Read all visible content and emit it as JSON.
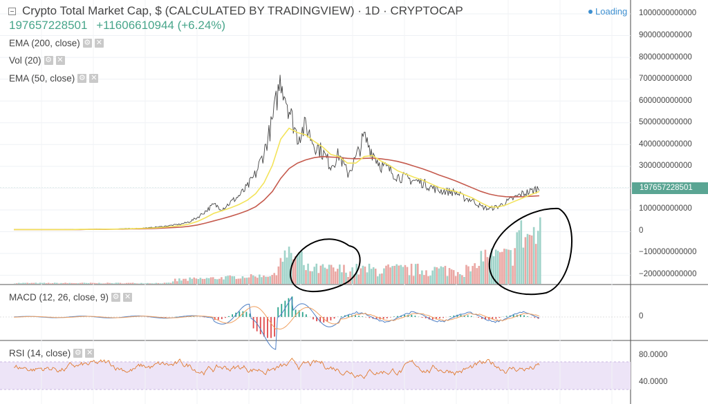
{
  "header": {
    "title": "Crypto Total Market Cap, $ (CALCULATED BY TRADINGVIEW) · 1D · CRYPTOCAP",
    "last_price": "197657228501",
    "change": "+11606610944 (+6.24%)",
    "loading": "Loading"
  },
  "indicators": {
    "ema200": "EMA (200, close)",
    "vol": "Vol (20)",
    "ema50": "EMA (50, close)",
    "macd": "MACD (12, 26, close, 9)",
    "rsi": "RSI (14, close)"
  },
  "icons": {
    "settings": "gear-icon",
    "close": "close-icon"
  },
  "colors": {
    "price": "#444444",
    "ema50": "#f3e35a",
    "ema200": "#c55a4d",
    "vol_up": "#9fd3c9",
    "vol_down": "#eaa7a3",
    "macd_line": "#4d7ec4",
    "signal_line": "#f0a060",
    "rsi_line": "#e07a2e",
    "rsi_band": "#ede4f7",
    "accent": "#47a58a",
    "annotation": "#000000"
  },
  "chart_data": {
    "type": "line",
    "price_axis": {
      "labels": [
        "1000000000000",
        "900000000000",
        "800000000000",
        "700000000000",
        "600000000000",
        "500000000000",
        "400000000000",
        "300000000000",
        "200000000000",
        "100000000000",
        "0",
        "−100000000000",
        "−200000000000"
      ],
      "last_price_label": "197657228501"
    },
    "macd_axis": {
      "labels": [
        "0"
      ]
    },
    "rsi_axis": {
      "labels": [
        "80.0000",
        "40.0000"
      ]
    },
    "series": [
      {
        "name": "Crypto Total Market Cap",
        "y_points": [
          5,
          5,
          5,
          5,
          5,
          5,
          5,
          6,
          6,
          6,
          7,
          7,
          8,
          9,
          10,
          11,
          13,
          16,
          20,
          25,
          30,
          40,
          60,
          90,
          120,
          100,
          130,
          160,
          200,
          260,
          360,
          500,
          700,
          560,
          430,
          480,
          400,
          360,
          300,
          350,
          260,
          330,
          430,
          360,
          300,
          280,
          250,
          240,
          230,
          220,
          200,
          185,
          180,
          175,
          150,
          140,
          110,
          100,
          110,
          130,
          150,
          170,
          180,
          198
        ]
      },
      {
        "name": "EMA (50, close)",
        "y_points": [
          5,
          5,
          5,
          5,
          5,
          5,
          5,
          5,
          6,
          6,
          6,
          7,
          7,
          8,
          9,
          10,
          11,
          13,
          16,
          19,
          23,
          30,
          42,
          60,
          80,
          92,
          105,
          120,
          140,
          170,
          220,
          300,
          420,
          470,
          450,
          440,
          410,
          385,
          350,
          340,
          310,
          310,
          340,
          345,
          320,
          300,
          275,
          260,
          245,
          232,
          215,
          198,
          188,
          180,
          165,
          150,
          128,
          110,
          108,
          118,
          134,
          150,
          165,
          180
        ]
      },
      {
        "name": "EMA (200, close)",
        "y_points": [
          5,
          5,
          5,
          5,
          5,
          5,
          5,
          5,
          5,
          6,
          6,
          6,
          7,
          7,
          8,
          8,
          9,
          10,
          12,
          14,
          16,
          20,
          26,
          35,
          45,
          55,
          66,
          78,
          92,
          110,
          140,
          180,
          240,
          285,
          310,
          325,
          335,
          340,
          338,
          336,
          332,
          330,
          332,
          333,
          330,
          325,
          318,
          308,
          296,
          284,
          270,
          255,
          242,
          228,
          212,
          196,
          180,
          168,
          160,
          156,
          155,
          156,
          158,
          160
        ]
      }
    ]
  }
}
